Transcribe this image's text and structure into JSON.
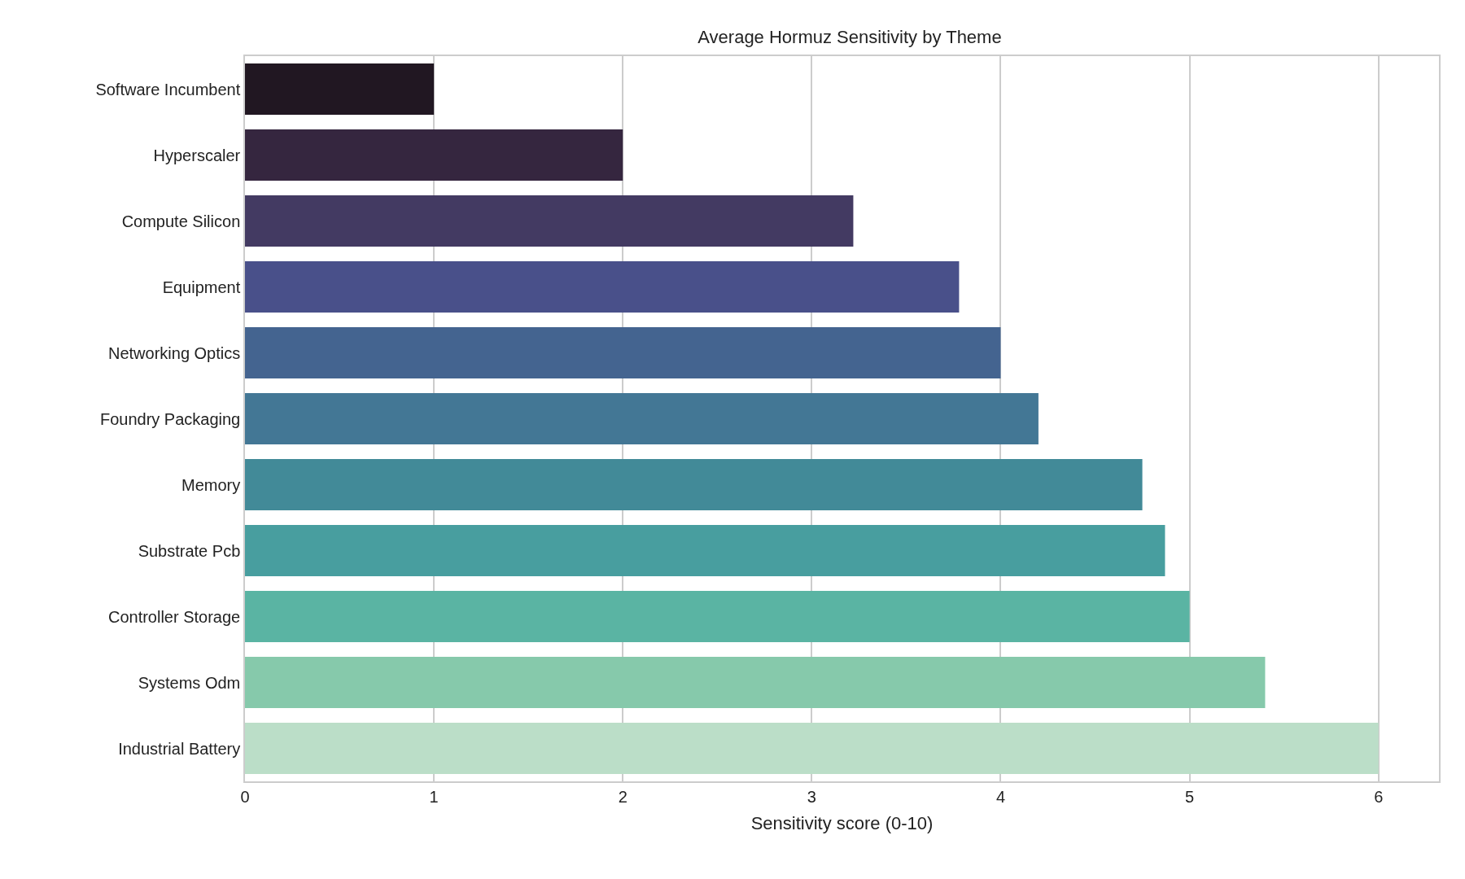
{
  "chart_data": {
    "type": "bar",
    "orientation": "horizontal",
    "title": "Average Hormuz Sensitivity by Theme",
    "xlabel": "Sensitivity score (0-10)",
    "categories": [
      "Software Incumbent",
      "Hyperscaler",
      "Compute Silicon",
      "Equipment",
      "Networking Optics",
      "Foundry Packaging",
      "Memory",
      "Substrate Pcb",
      "Controller Storage",
      "Systems Odm",
      "Industrial Battery"
    ],
    "values": [
      1.0,
      2.0,
      3.22,
      3.78,
      4.0,
      4.2,
      4.75,
      4.87,
      5.0,
      5.4,
      6.0
    ],
    "colors": [
      "#211722",
      "#35263f",
      "#433a62",
      "#49508a",
      "#446490",
      "#437795",
      "#428a98",
      "#489e9f",
      "#5ab4a3",
      "#86c9ab",
      "#bbdec8"
    ],
    "xlim": [
      0,
      6.32
    ],
    "xticks": [
      0,
      1,
      2,
      3,
      4,
      5,
      6
    ],
    "grid": "x"
  }
}
